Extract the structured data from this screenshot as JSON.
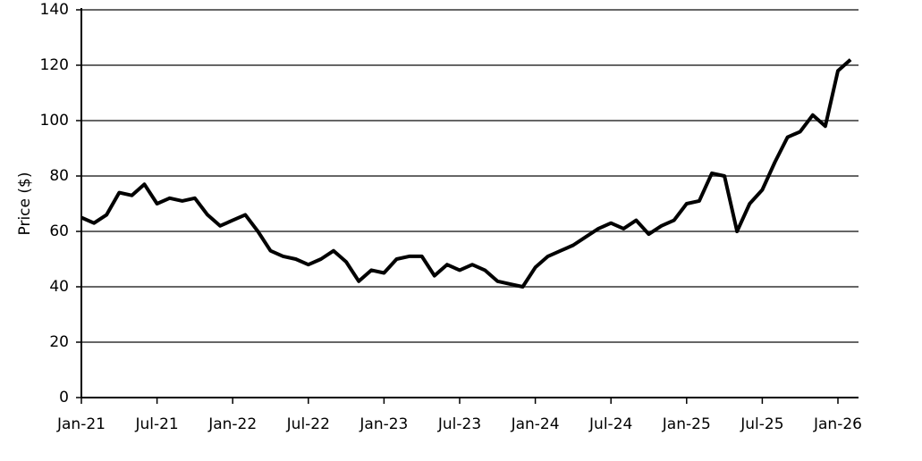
{
  "chart_data": {
    "type": "line",
    "y_label": "Price ($)",
    "x": [
      "Jan-21",
      "Feb-21",
      "Mar-21",
      "Apr-21",
      "May-21",
      "Jun-21",
      "Jul-21",
      "Aug-21",
      "Sep-21",
      "Oct-21",
      "Nov-21",
      "Dec-21",
      "Jan-22",
      "Feb-22",
      "Mar-22",
      "Apr-22",
      "May-22",
      "Jun-22",
      "Jul-22",
      "Aug-22",
      "Sep-22",
      "Oct-22",
      "Nov-22",
      "Dec-22",
      "Jan-23",
      "Feb-23",
      "Mar-23",
      "Apr-23",
      "May-23",
      "Jun-23",
      "Jul-23",
      "Aug-23",
      "Sep-23",
      "Oct-23",
      "Nov-23",
      "Dec-23",
      "Jan-24",
      "Feb-24",
      "Mar-24",
      "Apr-24",
      "May-24",
      "Jun-24",
      "Jul-24",
      "Aug-24",
      "Sep-24",
      "Oct-24",
      "Nov-24",
      "Dec-24",
      "Jan-25",
      "Feb-25",
      "Mar-25",
      "Apr-25",
      "May-25",
      "Jun-25",
      "Jul-25",
      "Aug-25",
      "Sep-25",
      "Oct-25",
      "Nov-25",
      "Dec-25",
      "Jan-26",
      "Feb-26"
    ],
    "series": [
      {
        "color": "#000000",
        "values": [
          65,
          63,
          66,
          74,
          73,
          77,
          70,
          72,
          71,
          72,
          66,
          62,
          64,
          66,
          60,
          53,
          51,
          50,
          48,
          50,
          53,
          49,
          42,
          46,
          45,
          50,
          51,
          51,
          44,
          48,
          46,
          48,
          46,
          42,
          41,
          40,
          47,
          51,
          53,
          55,
          58,
          61,
          63,
          61,
          64,
          59,
          62,
          64,
          70,
          71,
          81,
          80,
          60,
          70,
          75,
          85,
          94,
          96,
          102,
          98,
          118,
          122
        ]
      }
    ],
    "xticks": [
      "Jan-21",
      "Jul-21",
      "Jan-22",
      "Jul-22",
      "Jan-23",
      "Jul-23",
      "Jan-24",
      "Jul-24",
      "Jan-25",
      "Jul-25",
      "Jan-26"
    ],
    "ylim": [
      0,
      140
    ],
    "yticks": [
      0,
      20,
      40,
      60,
      80,
      100,
      120,
      140
    ],
    "grid": true
  }
}
